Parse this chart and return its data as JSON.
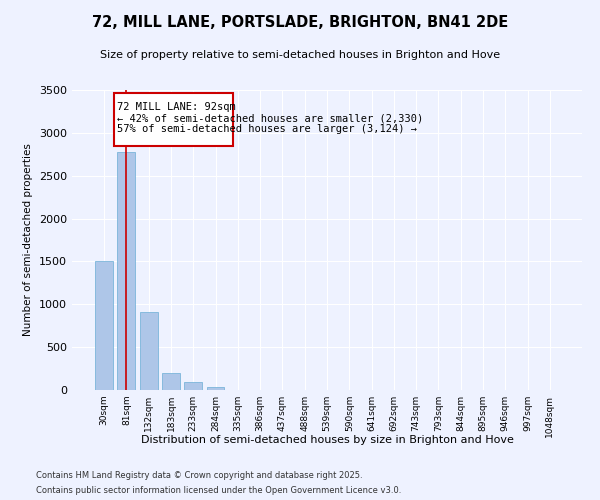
{
  "title": "72, MILL LANE, PORTSLADE, BRIGHTON, BN41 2DE",
  "subtitle": "Size of property relative to semi-detached houses in Brighton and Hove",
  "xlabel": "Distribution of semi-detached houses by size in Brighton and Hove",
  "ylabel": "Number of semi-detached properties",
  "categories": [
    "30sqm",
    "81sqm",
    "132sqm",
    "183sqm",
    "233sqm",
    "284sqm",
    "335sqm",
    "386sqm",
    "437sqm",
    "488sqm",
    "539sqm",
    "590sqm",
    "641sqm",
    "692sqm",
    "743sqm",
    "793sqm",
    "844sqm",
    "895sqm",
    "946sqm",
    "997sqm",
    "1048sqm"
  ],
  "values": [
    1510,
    2780,
    910,
    200,
    95,
    40,
    5,
    3,
    2,
    1,
    0,
    0,
    0,
    0,
    0,
    0,
    0,
    0,
    0,
    0,
    0
  ],
  "bar_color": "#aec6e8",
  "bar_edgecolor": "#6aaed6",
  "highlight_color": "#cc0000",
  "property_label": "72 MILL LANE: 92sqm",
  "pct_smaller": "42% of semi-detached houses are smaller (2,330)",
  "pct_larger": "57% of semi-detached houses are larger (3,124)",
  "annotation_bar_index": 1,
  "ylim": [
    0,
    3500
  ],
  "yticks": [
    0,
    500,
    1000,
    1500,
    2000,
    2500,
    3000,
    3500
  ],
  "background_color": "#eef2ff",
  "grid_color": "#ffffff",
  "footer_line1": "Contains HM Land Registry data © Crown copyright and database right 2025.",
  "footer_line2": "Contains public sector information licensed under the Open Government Licence v3.0."
}
